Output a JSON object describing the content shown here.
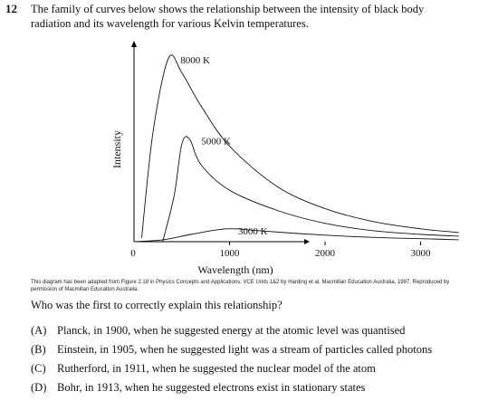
{
  "question": {
    "number": "12",
    "stem": "The family of curves below shows the relationship between the intensity of black body radiation and its wavelength for various Kelvin temperatures.",
    "prompt": "Who was the first to correctly explain this relationship?",
    "credit": "This diagram has been adapted from Figure 2.18 in Physics Concepts and Applications, VCE Units 1&2 by Harding et al, Macmillan Education Australia, 1997. Reproduced by permission of Macmillan Education Australia.",
    "options": [
      {
        "label": "(A)",
        "text": "Planck, in 1900, when he suggested energy at the atomic level was quantised"
      },
      {
        "label": "(B)",
        "text": "Einstein, in 1905, when he suggested light was a stream of particles called photons"
      },
      {
        "label": "(C)",
        "text": "Rutherford, in 1911, when he suggested the nuclear model of the atom"
      },
      {
        "label": "(D)",
        "text": "Bohr, in 1913, when he suggested electrons exist in stationary states"
      }
    ]
  },
  "chart_data": {
    "type": "line",
    "xlabel": "Wavelength (nm)",
    "ylabel": "Intensity",
    "x_ticks": [
      "0",
      "1000",
      "2000",
      "3000"
    ],
    "xlim": [
      0,
      3500
    ],
    "ylim": [
      0,
      100
    ],
    "grid": false,
    "series": [
      {
        "name": "8000 K",
        "x": [
          80,
          200,
          362,
          500,
          700,
          1000,
          1500,
          2000,
          2500,
          3000,
          3400
        ],
        "y": [
          2,
          60,
          100,
          92,
          74,
          52,
          30,
          18,
          11,
          7,
          5
        ]
      },
      {
        "name": "5000 K",
        "x": [
          300,
          420,
          500,
          580,
          700,
          1000,
          1500,
          2000,
          2500,
          3000,
          3400
        ],
        "y": [
          0,
          25,
          53,
          56,
          42,
          28,
          17,
          10,
          6,
          4,
          3
        ]
      },
      {
        "name": "3000 K",
        "x": [
          0,
          300,
          600,
          966,
          1300,
          1700,
          2200,
          2700,
          3100,
          3400
        ],
        "y": [
          0,
          1,
          4,
          7,
          6,
          4.5,
          3,
          2,
          1.5,
          1
        ]
      }
    ]
  }
}
